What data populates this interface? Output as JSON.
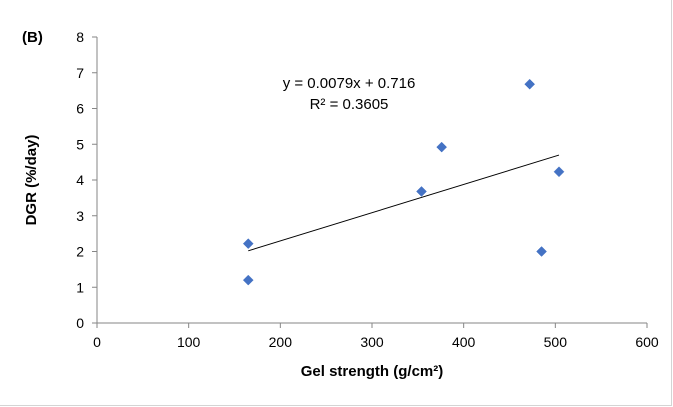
{
  "panel_label": "(B)",
  "chart_data": {
    "type": "scatter",
    "title": "",
    "xlabel": "Gel strength (g/cm²)",
    "ylabel": "DGR (%/day)",
    "xlim": [
      0,
      600
    ],
    "ylim": [
      0,
      8
    ],
    "x_ticks": [
      "0",
      "100",
      "200",
      "300",
      "400",
      "500",
      "600"
    ],
    "y_ticks": [
      "0",
      "1",
      "2",
      "3",
      "4",
      "5",
      "6",
      "7",
      "8"
    ],
    "grid": false,
    "series": [
      {
        "points": [
          {
            "x": 165,
            "y": 2.22
          },
          {
            "x": 165,
            "y": 1.2
          },
          {
            "x": 354,
            "y": 3.68
          },
          {
            "x": 376,
            "y": 4.92
          },
          {
            "x": 472,
            "y": 6.68
          },
          {
            "x": 485,
            "y": 2.0
          },
          {
            "x": 504,
            "y": 4.23
          }
        ],
        "color": "#4472c4",
        "marker": "diamond"
      }
    ],
    "trendline": {
      "type": "linear",
      "slope": 0.0079,
      "intercept": 0.716,
      "x_range": [
        165,
        504
      ],
      "color": "#000000"
    },
    "annotations": {
      "equation": "y = 0.0079x + 0.716",
      "r_squared": "R² = 0.3605"
    }
  }
}
